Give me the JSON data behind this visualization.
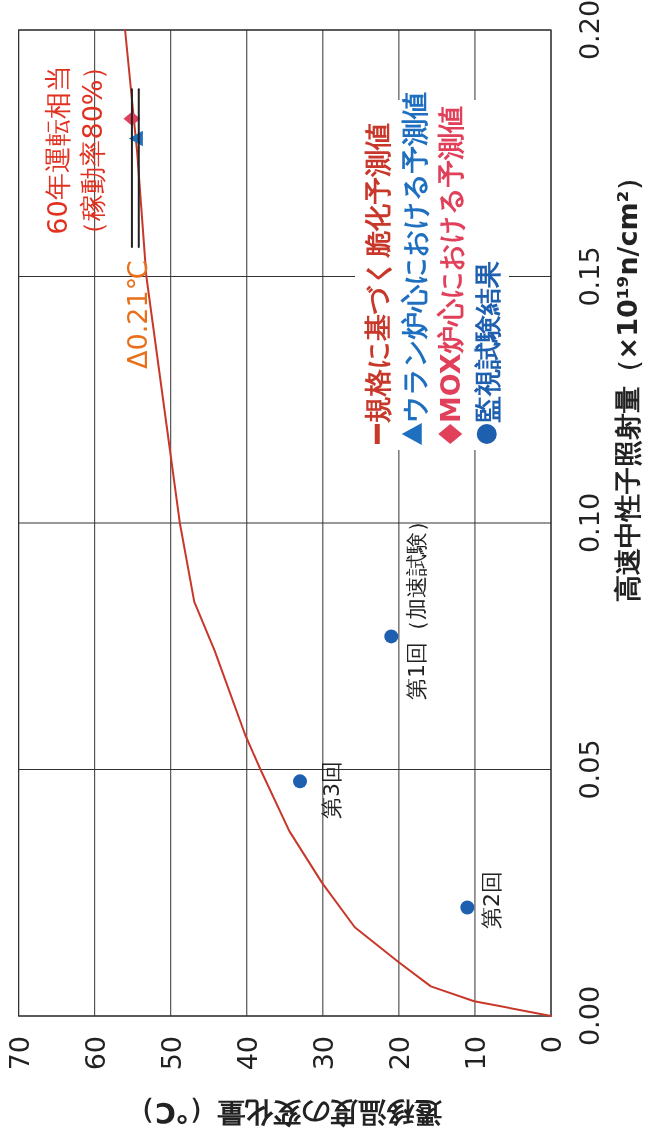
{
  "chart_data": {
    "type": "line",
    "xlabel": "遷移温度の変化量（℃）",
    "ylabel": "高速中性子照射量（×10¹⁹n/cm²）",
    "xlim": [
      70,
      0
    ],
    "xticks": [
      70,
      60,
      50,
      40,
      30,
      20,
      10,
      0
    ],
    "ylim": [
      0,
      0.2
    ],
    "yticks": [
      {
        "value": 0,
        "label": "0.00"
      },
      {
        "value": 0.05,
        "label": "0.05"
      },
      {
        "value": 0.1,
        "label": "0.10"
      },
      {
        "value": 0.15,
        "label": "0.15"
      },
      {
        "value": 0.2,
        "label": "0.20"
      }
    ],
    "grid": true,
    "legend": "top right",
    "series": [
      {
        "name": "規格に基づく脆化予測値",
        "color": "#c8382a",
        "marker": "none",
        "x": [
          0,
          10.1,
          15.8,
          20.1,
          25.8,
          30.1,
          34.4,
          38.2,
          40.2,
          44.2,
          46.9,
          48.8,
          51.0,
          53.2,
          54.4,
          56.0
        ],
        "values": [
          0,
          0.003,
          0.006,
          0.011,
          0.018,
          0.027,
          0.0375,
          0.05,
          0.057,
          0.074,
          0.084,
          0.1,
          0.125,
          0.15,
          0.175,
          0.2
        ]
      },
      {
        "name": "ウラン炉心における予測値",
        "type": "scatter",
        "color": "#1e6fc0",
        "marker": "triangle",
        "x": [
          54.4
        ],
        "values": [
          0.178
        ]
      },
      {
        "name": "MOX炉心における予測値",
        "type": "scatter",
        "color": "#e0405a",
        "marker": "diamond",
        "x": [
          55.1
        ],
        "values": [
          0.182
        ]
      },
      {
        "name": "監視試験結果",
        "type": "scatter",
        "color": "#1f5fb0",
        "marker": "circle",
        "x": [
          11.0,
          33.0,
          21.0
        ],
        "values": [
          0.022,
          0.0476,
          0.077
        ]
      },
      {
        "color": "#222222",
        "marker": "none",
        "x": [
          55.1,
          55.1
        ],
        "values": [
          0.156,
          0.188
        ]
      },
      {
        "color": "#222222",
        "marker": "none",
        "x": [
          54.2,
          54.2
        ],
        "values": [
          0.156,
          0.188
        ]
      }
    ],
    "annotations": [
      "60年運転相当",
      "（稼動率80%）",
      "Δ0.21℃",
      "第2回",
      "第3回",
      "第1回（加速試験）"
    ]
  }
}
